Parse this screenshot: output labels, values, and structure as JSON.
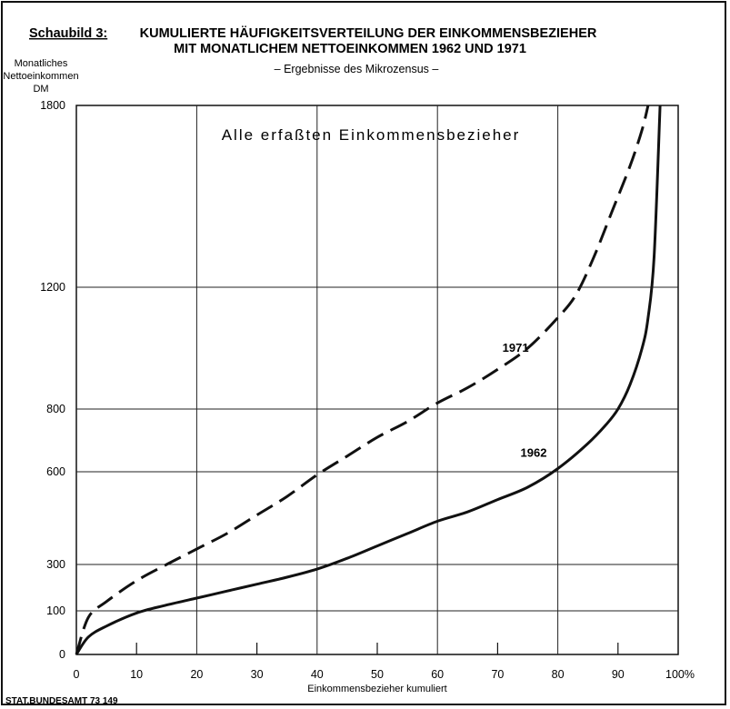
{
  "figure": {
    "label": "Schaubild 3:",
    "title_line1": "KUMULIERTE HÄUFIGKEITSVERTEILUNG DER EINKOMMENSBEZIEHER",
    "title_line2": "MIT MONATLICHEM NETTOEINKOMMEN 1962 UND 1971",
    "subtitle": "– Ergebnisse des Mikrozensus –",
    "source": "STAT.BUNDESAMT 73 149"
  },
  "chart_data": {
    "type": "line",
    "title": "KUMULIERTE HÄUFIGKEITSVERTEILUNG DER EINKOMMENSBEZIEHER MIT MONATLICHEM NETTOEINKOMMEN 1962 UND 1971",
    "subtitle": "– Ergebnisse des Mikrozensus –",
    "annotation": "Alle erfaßten Einkommensbezieher",
    "ylabel_lines": [
      "Monatliches",
      "Nettoeinkommen",
      "DM"
    ],
    "xlabel": "Einkommensbezieher kumuliert",
    "x_ticks": [
      "0",
      "10",
      "20",
      "30",
      "40",
      "50",
      "60",
      "70",
      "80",
      "90",
      "100%"
    ],
    "x_tick_values": [
      0,
      10,
      20,
      30,
      40,
      50,
      60,
      70,
      80,
      90,
      100
    ],
    "y_ticks": [
      "0",
      "100",
      "300",
      "600",
      "800",
      "1200",
      "1800"
    ],
    "y_tick_values": [
      0,
      100,
      300,
      600,
      800,
      1200,
      1800
    ],
    "xlim": [
      0,
      100
    ],
    "ylim": [
      0,
      1800
    ],
    "y_scale": "non-linear (tick positions as printed: 0, 100, 300, 600, 800, 1200, 1800)",
    "x_gridlines": [
      0,
      20,
      40,
      60,
      80,
      100
    ],
    "grid": true,
    "series": [
      {
        "name": "1962",
        "style": "solid",
        "x": [
          0,
          2,
          5,
          10,
          15,
          20,
          25,
          30,
          35,
          40,
          45,
          50,
          55,
          60,
          65,
          70,
          75,
          80,
          85,
          88,
          90,
          92,
          94,
          95,
          96,
          97
        ],
        "y": [
          0,
          40,
          65,
          95,
          125,
          155,
          185,
          215,
          245,
          280,
          320,
          360,
          400,
          440,
          470,
          510,
          550,
          610,
          690,
          750,
          800,
          880,
          1000,
          1100,
          1300,
          1800
        ]
      },
      {
        "name": "1971",
        "style": "dashed",
        "x": [
          0,
          2,
          5,
          10,
          15,
          20,
          25,
          30,
          35,
          40,
          45,
          50,
          55,
          60,
          65,
          70,
          75,
          80,
          83,
          86,
          89,
          92,
          94,
          95
        ],
        "y": [
          0,
          85,
          140,
          230,
          300,
          350,
          400,
          460,
          520,
          590,
          650,
          710,
          760,
          820,
          870,
          930,
          1000,
          1100,
          1175,
          1300,
          1450,
          1600,
          1720,
          1800
        ]
      }
    ],
    "series_labels": [
      {
        "text": "1971",
        "x": 72,
        "y": 1000
      },
      {
        "text": "1962",
        "x": 75,
        "y": 660
      }
    ]
  }
}
